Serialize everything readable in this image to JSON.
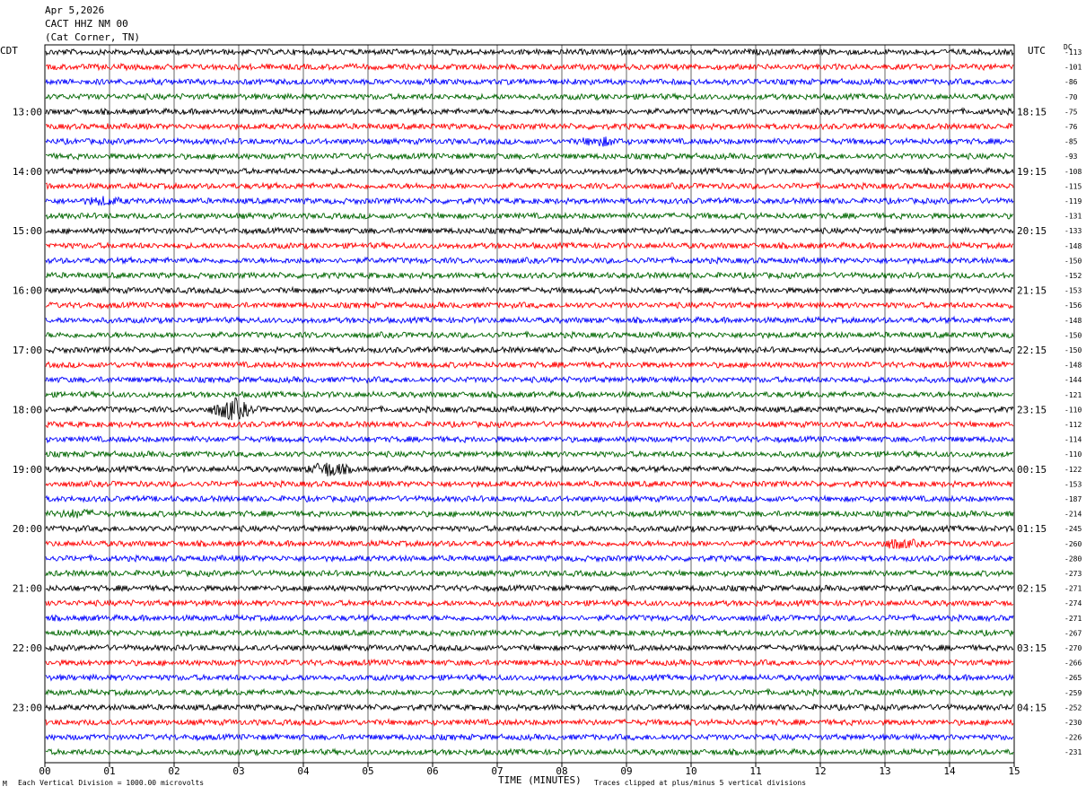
{
  "header": {
    "date": "Apr 5,2026",
    "station": "CACT HHZ NM 00",
    "location": "(Cat Corner, TN)"
  },
  "left_zone": "CDT",
  "right_zone": "UTC",
  "dc_label": "DC",
  "footer": {
    "scale_note": "Each Vertical Division = 1000.00 microvolts",
    "clip_note": "Traces clipped at plus/minus 5 vertical divisions",
    "corner_mark": "M"
  },
  "colors": {
    "trace_cycle": [
      "#000000",
      "#ff0000",
      "#0000ff",
      "#006600"
    ],
    "grid": "#000000"
  },
  "chart_data": {
    "type": "line",
    "subtype": "helicorder",
    "xlabel": "TIME (MINUTES)",
    "xlim": [
      0,
      15
    ],
    "x_ticks": [
      "00",
      "01",
      "02",
      "03",
      "04",
      "05",
      "06",
      "07",
      "08",
      "09",
      "10",
      "11",
      "12",
      "13",
      "14",
      "15"
    ],
    "rows_per_hour": 4,
    "left_hour_labels": [
      "13:00",
      "14:00",
      "15:00",
      "16:00",
      "17:00",
      "18:00",
      "19:00",
      "20:00",
      "21:00",
      "22:00",
      "23:00"
    ],
    "right_hour_labels": [
      "18:15",
      "19:15",
      "20:15",
      "21:15",
      "22:15",
      "23:15",
      "00:15",
      "01:15",
      "02:15",
      "03:15",
      "04:15"
    ],
    "dc_offsets": [
      -113,
      -101,
      -86,
      -70,
      -75,
      -76,
      -85,
      -93,
      -108,
      -115,
      -119,
      -131,
      -133,
      -148,
      -150,
      -152,
      -153,
      -156,
      -148,
      -150,
      -150,
      -148,
      -144,
      -121,
      -110,
      -112,
      -114,
      -110,
      -122,
      -153,
      -187,
      -214,
      -245,
      -260,
      -280,
      -273,
      -271,
      -274,
      -271,
      -267,
      -270,
      -266,
      -265,
      -259,
      -252,
      -230,
      -226,
      -231
    ],
    "events": [
      {
        "row": 24,
        "minute": 2.9,
        "amplitude": 2.2
      },
      {
        "row": 28,
        "minute": 4.4,
        "amplitude": 1.4
      },
      {
        "row": 33,
        "minute": 13.2,
        "amplitude": 0.8
      },
      {
        "row": 6,
        "minute": 8.6,
        "amplitude": 0.7
      },
      {
        "row": 31,
        "minute": 0.5,
        "amplitude": 0.6
      },
      {
        "row": 10,
        "minute": 0.9,
        "amplitude": 0.6
      }
    ]
  }
}
